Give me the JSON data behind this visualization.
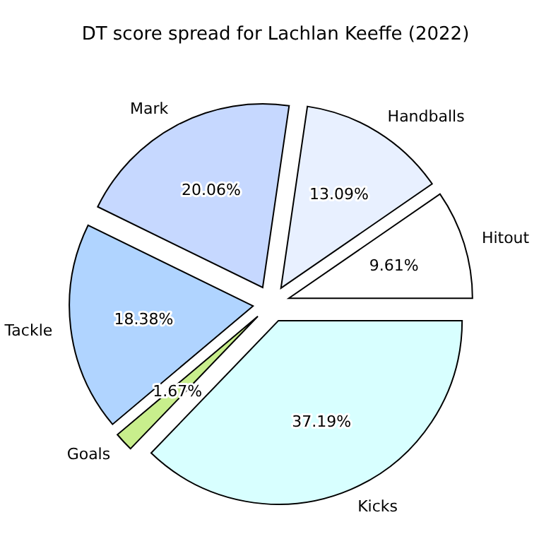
{
  "chart_data": {
    "type": "pie",
    "title": "DT score spread for Lachlan Keeffe (2022)",
    "categories": [
      "Hitout",
      "Handballs",
      "Mark",
      "Tackle",
      "Goals",
      "Kicks"
    ],
    "values": [
      9.61,
      13.09,
      20.06,
      18.38,
      1.67,
      37.19
    ],
    "colors": [
      "#ffffff",
      "#e8f0ff",
      "#c6d8ff",
      "#b0d4ff",
      "#c8ee8c",
      "#d8ffff"
    ],
    "value_labels": [
      "9.61%",
      "13.09%",
      "20.06%",
      "18.38%",
      "1.67%",
      "37.19%"
    ]
  }
}
